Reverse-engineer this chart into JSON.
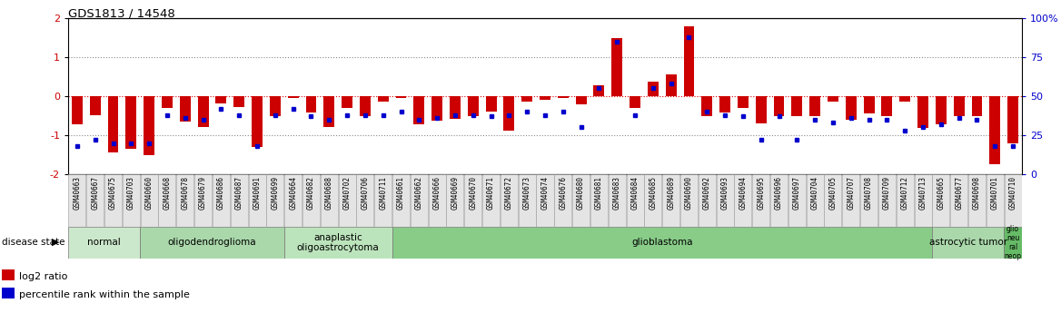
{
  "title": "GDS1813 / 14548",
  "samples": [
    "GSM40663",
    "GSM40667",
    "GSM40675",
    "GSM40703",
    "GSM40660",
    "GSM40668",
    "GSM40678",
    "GSM40679",
    "GSM40686",
    "GSM40687",
    "GSM40691",
    "GSM40699",
    "GSM40664",
    "GSM40682",
    "GSM40688",
    "GSM40702",
    "GSM40706",
    "GSM40711",
    "GSM40661",
    "GSM40662",
    "GSM40666",
    "GSM40669",
    "GSM40670",
    "GSM40671",
    "GSM40672",
    "GSM40673",
    "GSM40674",
    "GSM40676",
    "GSM40680",
    "GSM40681",
    "GSM40683",
    "GSM40684",
    "GSM40685",
    "GSM40689",
    "GSM40690",
    "GSM40692",
    "GSM40693",
    "GSM40694",
    "GSM40695",
    "GSM40696",
    "GSM40697",
    "GSM40704",
    "GSM40705",
    "GSM40707",
    "GSM40708",
    "GSM40709",
    "GSM40712",
    "GSM40713",
    "GSM40665",
    "GSM40677",
    "GSM40698",
    "GSM40701",
    "GSM40710"
  ],
  "log2_ratio": [
    -0.72,
    -0.48,
    -1.45,
    -1.35,
    -1.5,
    -0.3,
    -0.65,
    -0.8,
    -0.18,
    -0.28,
    -1.3,
    -0.5,
    -0.05,
    -0.42,
    -0.8,
    -0.3,
    -0.5,
    -0.15,
    -0.05,
    -0.72,
    -0.62,
    -0.58,
    -0.5,
    -0.4,
    -0.88,
    -0.15,
    -0.1,
    -0.05,
    -0.2,
    0.28,
    1.5,
    -0.3,
    0.38,
    0.55,
    1.8,
    -0.52,
    -0.42,
    -0.3,
    -0.7,
    -0.5,
    -0.52,
    -0.5,
    -0.15,
    -0.6,
    -0.45,
    -0.52,
    -0.15,
    -0.82,
    -0.72,
    -0.52,
    -0.52,
    -1.75,
    -1.2
  ],
  "percentile": [
    18,
    22,
    20,
    20,
    20,
    38,
    36,
    35,
    42,
    38,
    18,
    38,
    42,
    37,
    35,
    38,
    38,
    38,
    40,
    35,
    36,
    38,
    38,
    37,
    38,
    40,
    38,
    40,
    30,
    55,
    85,
    38,
    55,
    58,
    88,
    40,
    38,
    37,
    22,
    37,
    22,
    35,
    33,
    36,
    35,
    35,
    28,
    30,
    32,
    36,
    35,
    18,
    18
  ],
  "disease_groups": [
    {
      "label": "normal",
      "start": 0,
      "end": 4,
      "color": "#cce8cc"
    },
    {
      "label": "oligodendroglioma",
      "start": 4,
      "end": 12,
      "color": "#aad8aa"
    },
    {
      "label": "anaplastic\noligoastrocytoma",
      "start": 12,
      "end": 18,
      "color": "#bce4bc"
    },
    {
      "label": "glioblastoma",
      "start": 18,
      "end": 48,
      "color": "#88cc88"
    },
    {
      "label": "astrocytic tumor",
      "start": 48,
      "end": 52,
      "color": "#aad8aa"
    },
    {
      "label": "glio\nneu\nral\nneop",
      "start": 52,
      "end": 53,
      "color": "#66bb66"
    }
  ],
  "bar_color": "#cc0000",
  "dot_color": "#0000cc",
  "hline0_color": "#dd0000",
  "hline1_color": "#888888",
  "right_tick_color": "#0000cc",
  "left_yticks": [
    -2,
    -1,
    0,
    1,
    2
  ],
  "right_yticks": [
    0,
    25,
    50,
    75,
    100
  ],
  "right_yticklabels": [
    "0",
    "25",
    "50",
    "75",
    "100%"
  ]
}
